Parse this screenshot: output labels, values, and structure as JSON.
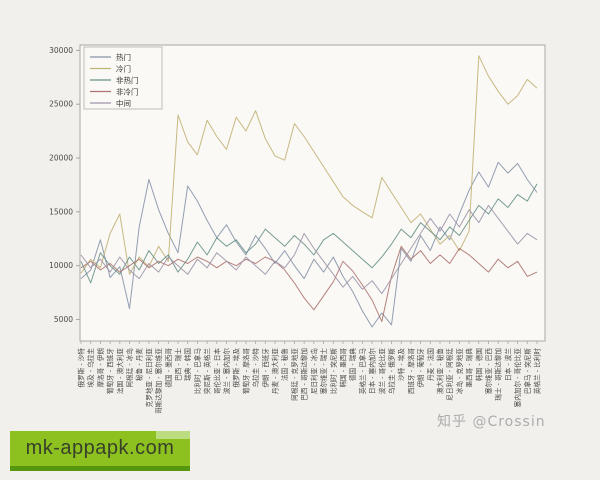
{
  "figure": {
    "watermark": "知乎 @Crossin",
    "badge_text": "mk-appapk.com",
    "badge_color": "#8cc120",
    "badge_band_light": "#bcdc80",
    "badge_band_dark": "#57960f"
  },
  "chart_data": {
    "type": "line",
    "title": "",
    "xlabel": "",
    "ylabel": "",
    "grid": false,
    "legend_position": "upper left",
    "x_tick_rotation": 90,
    "ylim": [
      3000,
      30500
    ],
    "yticks": [
      5000,
      10000,
      15000,
      20000,
      25000,
      30000
    ],
    "axis_color": "#a8a8a4",
    "tick_label_color": "#4a4a48",
    "plot_bg": "#faf9f6",
    "categories": [
      "俄罗斯 - 沙特",
      "埃及 - 乌拉圭",
      "摩洛哥 - 伊朗",
      "葡萄牙 - 西班牙",
      "法国 - 澳大利亚",
      "阿根廷 - 冰岛",
      "秘鲁 - 丹麦",
      "克罗地亚 - 尼日利亚",
      "哥斯达黎加 - 塞尔维亚",
      "德国 - 墨西哥",
      "巴西 - 瑞士",
      "瑞典 - 韩国",
      "比利时 - 巴拿马",
      "突尼斯 - 英格兰",
      "哥伦比亚 - 日本",
      "波兰 - 塞内加尔",
      "俄罗斯 - 埃及",
      "葡萄牙 - 摩洛哥",
      "乌拉圭 - 沙特",
      "伊朗 - 西班牙",
      "丹麦 - 澳大利亚",
      "法国 - 秘鲁",
      "阿根廷 - 克罗地亚",
      "巴西 - 哥斯达黎加",
      "尼日利亚 - 冰岛",
      "塞尔维亚 - 瑞士",
      "比利时 - 突尼斯",
      "韩国 - 墨西哥",
      "德国 - 瑞典",
      "英格兰 - 巴拿马",
      "日本 - 塞内加尔",
      "波兰 - 哥伦比亚",
      "乌拉圭 - 俄罗斯",
      "沙特 - 埃及",
      "西班牙 - 摩洛哥",
      "伊朗 - 葡萄牙",
      "丹麦 - 法国",
      "澳大利亚 - 秘鲁",
      "尼日利亚 - 阿根廷",
      "冰岛 - 克罗地亚",
      "墨西哥 - 瑞典",
      "韩国 - 德国",
      "塞尔维亚 - 巴西",
      "瑞士 - 哥斯达黎加",
      "日本 - 波兰",
      "塞内加尔 - 哥伦比亚",
      "巴拿马 - 突尼斯",
      "英格兰 - 比利时"
    ],
    "series": [
      {
        "name": "热门",
        "color": "#8794a8",
        "values": [
          8800,
          9600,
          12400,
          8900,
          9900,
          6000,
          13600,
          18000,
          15200,
          13000,
          11200,
          17400,
          16000,
          14200,
          12600,
          13800,
          12200,
          11000,
          12800,
          11600,
          10200,
          11400,
          10000,
          8800,
          10600,
          9400,
          10800,
          9000,
          7600,
          5800,
          4300,
          5600,
          4500,
          11600,
          10400,
          12800,
          11400,
          13600,
          12400,
          14800,
          17000,
          18700,
          17300,
          19600,
          18600,
          19500,
          18000,
          16800
        ]
      },
      {
        "name": "冷门",
        "color": "#c2b175",
        "values": [
          9300,
          10600,
          9800,
          13000,
          14800,
          9200,
          10800,
          9900,
          11800,
          10400,
          24000,
          21500,
          20300,
          23500,
          22000,
          20800,
          23800,
          22500,
          24400,
          21800,
          20200,
          19800,
          23200,
          22000,
          20600,
          19200,
          17800,
          16400,
          15600,
          15000,
          14450,
          18200,
          16800,
          15400,
          14000,
          14800,
          13400,
          12000,
          12800,
          11400,
          13200,
          29500,
          27600,
          26200,
          25000,
          25800,
          27300,
          26500
        ]
      },
      {
        "name": "非热门",
        "color": "#679288",
        "values": [
          10400,
          8400,
          11200,
          10000,
          9200,
          10800,
          9600,
          11400,
          10200,
          11000,
          9400,
          10600,
          12200,
          11000,
          12600,
          11800,
          12400,
          11200,
          12000,
          13400,
          12600,
          11800,
          12800,
          12000,
          11000,
          12400,
          13000,
          12200,
          11400,
          10600,
          9800,
          10800,
          12000,
          13400,
          12600,
          14000,
          13200,
          12400,
          13600,
          12800,
          14200,
          15600,
          14800,
          16200,
          15400,
          16600,
          16000,
          17600
        ]
      },
      {
        "name": "非冷门",
        "color": "#ad7470",
        "values": [
          9800,
          10400,
          9600,
          10200,
          9400,
          10000,
          10600,
          9800,
          10400,
          10000,
          10600,
          10200,
          10800,
          10400,
          9800,
          10400,
          10000,
          10600,
          10200,
          10800,
          10400,
          9600,
          8400,
          7000,
          5900,
          7200,
          8500,
          10400,
          9500,
          8200,
          6800,
          4800,
          9000,
          11800,
          10600,
          11400,
          10200,
          11000,
          10200,
          11600,
          11000,
          10200,
          9400,
          10600,
          9800,
          10400,
          9000,
          9400
        ]
      },
      {
        "name": "中间",
        "color": "#9f93a8",
        "values": [
          11000,
          9800,
          10600,
          9400,
          10800,
          9600,
          8800,
          10200,
          9400,
          10800,
          10000,
          9200,
          10600,
          9800,
          11200,
          10400,
          9600,
          10800,
          10000,
          9200,
          10400,
          9800,
          11000,
          13000,
          11600,
          10400,
          9200,
          8000,
          9000,
          7800,
          8600,
          7400,
          8800,
          10200,
          11600,
          13000,
          14400,
          13200,
          14800,
          13600,
          15200,
          14000,
          15600,
          14400,
          13200,
          12000,
          13000,
          12400
        ]
      }
    ]
  }
}
